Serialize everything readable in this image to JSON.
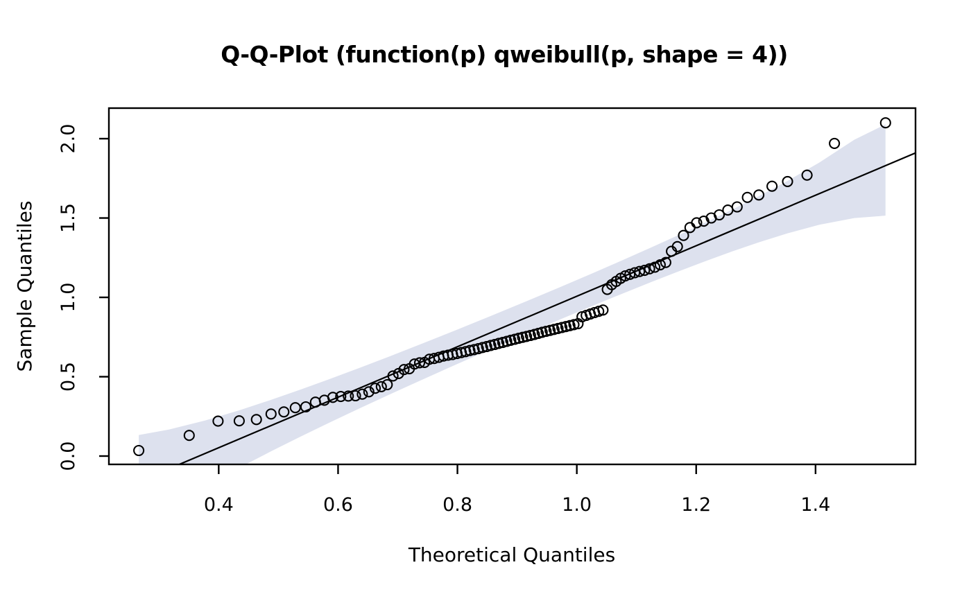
{
  "title": "Q-Q-Plot (function(p) qweibull(p, shape = 4))",
  "colors": {
    "background": "#ffffff",
    "envelope_fill": "#dde1ee",
    "point_stroke": "#000000",
    "line_stroke": "#000000",
    "frame_stroke": "#000000"
  },
  "chart_data": {
    "type": "scatter",
    "title": "Q-Q-Plot (function(p) qweibull(p, shape = 4))",
    "xlabel": "Theoretical Quantiles",
    "ylabel": "Sample Quantiles",
    "xlim": [
      0.216,
      1.5675
    ],
    "ylim": [
      -0.0524,
      2.1924
    ],
    "grid": false,
    "legend": "none",
    "x_ticks": [
      0.4,
      0.6,
      0.8,
      1.0,
      1.2,
      1.4
    ],
    "x_tick_labels": [
      "0.4",
      "0.6",
      "0.8",
      "1.0",
      "1.2",
      "1.4"
    ],
    "y_ticks": [
      0.0,
      0.5,
      1.0,
      1.5,
      2.0
    ],
    "y_tick_labels": [
      "0.0",
      "0.5",
      "1.0",
      "1.5",
      "2.0"
    ],
    "points": {
      "marker": "open-circle",
      "x": [
        0.2661,
        0.3506,
        0.3989,
        0.4344,
        0.4632,
        0.4877,
        0.5092,
        0.5284,
        0.5459,
        0.5621,
        0.5771,
        0.5912,
        0.6045,
        0.6171,
        0.6291,
        0.6406,
        0.6516,
        0.6622,
        0.6725,
        0.6824,
        0.692,
        0.7014,
        0.7105,
        0.7193,
        0.728,
        0.7366,
        0.7449,
        0.753,
        0.761,
        0.7689,
        0.7766,
        0.7843,
        0.7918,
        0.7992,
        0.8065,
        0.8138,
        0.8209,
        0.828,
        0.835,
        0.842,
        0.8489,
        0.8557,
        0.8625,
        0.8692,
        0.8759,
        0.8826,
        0.8893,
        0.8959,
        0.9025,
        0.9092,
        0.9157,
        0.9223,
        0.9289,
        0.9354,
        0.942,
        0.9486,
        0.9552,
        0.9618,
        0.9684,
        0.975,
        0.9817,
        0.9884,
        0.9952,
        1.002,
        1.0088,
        1.0157,
        1.0226,
        1.0296,
        1.0367,
        1.0439,
        1.0511,
        1.0585,
        1.0659,
        1.0735,
        1.0812,
        1.089,
        1.097,
        1.1051,
        1.1135,
        1.122,
        1.1307,
        1.1397,
        1.149,
        1.1586,
        1.1685,
        1.1788,
        1.1896,
        1.2008,
        1.2127,
        1.2253,
        1.2386,
        1.253,
        1.2686,
        1.2858,
        1.305,
        1.3271,
        1.3531,
        1.3858,
        1.4316,
        1.5173
      ],
      "y": [
        0.035,
        0.13,
        0.22,
        0.222,
        0.23,
        0.265,
        0.278,
        0.305,
        0.31,
        0.34,
        0.352,
        0.37,
        0.375,
        0.378,
        0.38,
        0.39,
        0.405,
        0.427,
        0.437,
        0.45,
        0.505,
        0.52,
        0.545,
        0.55,
        0.58,
        0.588,
        0.59,
        0.61,
        0.615,
        0.622,
        0.63,
        0.636,
        0.64,
        0.646,
        0.652,
        0.658,
        0.665,
        0.671,
        0.677,
        0.684,
        0.69,
        0.697,
        0.703,
        0.71,
        0.716,
        0.723,
        0.73,
        0.736,
        0.742,
        0.748,
        0.754,
        0.76,
        0.766,
        0.773,
        0.78,
        0.786,
        0.792,
        0.798,
        0.804,
        0.81,
        0.816,
        0.822,
        0.828,
        0.834,
        0.878,
        0.886,
        0.895,
        0.904,
        0.912,
        0.92,
        1.05,
        1.08,
        1.1,
        1.12,
        1.135,
        1.145,
        1.155,
        1.163,
        1.17,
        1.18,
        1.19,
        1.205,
        1.22,
        1.29,
        1.32,
        1.39,
        1.44,
        1.47,
        1.48,
        1.5,
        1.52,
        1.55,
        1.57,
        1.63,
        1.645,
        1.7,
        1.73,
        1.77,
        1.97,
        2.1
      ]
    },
    "reference_line": {
      "slope": 1.5908,
      "intercept": -0.5837
    },
    "envelope": {
      "x": [
        0.2661,
        0.3166,
        0.377,
        0.4345,
        0.4877,
        0.5373,
        0.5843,
        0.6349,
        0.6873,
        0.7408,
        0.7955,
        0.8523,
        0.9124,
        0.9717,
        1.0261,
        1.0773,
        1.1263,
        1.1737,
        1.2189,
        1.2607,
        1.305,
        1.3531,
        1.4064,
        1.4649,
        1.5172
      ],
      "lower": [
        -0.4537,
        -0.327,
        -0.1918,
        -0.0736,
        0.03,
        0.1229,
        0.2084,
        0.2984,
        0.3896,
        0.481,
        0.5731,
        0.6671,
        0.7652,
        0.8602,
        0.9459,
        1.0249,
        1.099,
        1.1685,
        1.2329,
        1.2898,
        1.3469,
        1.4036,
        1.4574,
        1.4999,
        1.5149
      ],
      "upper": [
        0.1329,
        0.1669,
        0.2239,
        0.2885,
        0.3543,
        0.4193,
        0.4832,
        0.5543,
        0.6297,
        0.7084,
        0.7905,
        0.8771,
        0.9704,
        1.064,
        1.1515,
        1.2353,
        1.3172,
        1.3982,
        1.4778,
        1.5537,
        1.6378,
        1.7341,
        1.8497,
        1.9934,
        2.09
      ]
    }
  }
}
